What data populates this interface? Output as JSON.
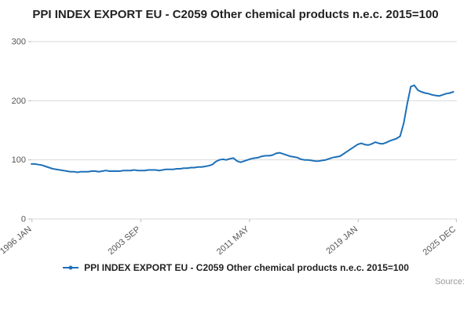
{
  "title": "PPI INDEX EXPORT EU - C2059 Other chemical products n.e.c. 2015=100",
  "legend": {
    "label": "PPI INDEX EXPORT EU - C2059 Other chemical products n.e.c. 2015=100"
  },
  "source_label": "Source:",
  "colors": {
    "line": "#1d70b8",
    "grid": "#d9d9d9",
    "tick": "#bbbbbb",
    "tick_text": "#555555"
  },
  "chart_data": {
    "type": "line",
    "title": "PPI INDEX EXPORT EU - C2059 Other chemical products n.e.c. 2015=100",
    "xlabel": "",
    "ylabel": "",
    "x_start": 1996.0,
    "x_step": 0.25,
    "x_range": [
      1996,
      2026
    ],
    "ylim": [
      0,
      300
    ],
    "yticks": [
      0,
      100,
      200,
      300
    ],
    "xticks": [
      {
        "v": 1996.04,
        "label": "1996 JAN"
      },
      {
        "v": 2003.71,
        "label": "2003 SEP"
      },
      {
        "v": 2011.38,
        "label": "2011 MAY"
      },
      {
        "v": 2019.04,
        "label": "2019 JAN"
      },
      {
        "v": 2025.96,
        "label": "2025 DEC"
      }
    ],
    "grid": "horizontal",
    "legend_position": "bottom",
    "series": [
      {
        "name": "PPI INDEX EXPORT EU - C2059 Other chemical products n.e.c. 2015=100",
        "values": [
          93,
          93,
          92,
          91,
          89,
          87,
          85,
          84,
          83,
          82,
          81,
          80,
          80,
          79,
          80,
          80,
          80,
          81,
          81,
          80,
          81,
          82,
          81,
          81,
          81,
          81,
          82,
          82,
          82,
          83,
          82,
          82,
          82,
          83,
          83,
          83,
          82,
          83,
          84,
          84,
          84,
          85,
          85,
          86,
          86,
          87,
          87,
          88,
          88,
          89,
          90,
          92,
          97,
          100,
          101,
          100,
          102,
          103,
          98,
          96,
          98,
          100,
          102,
          103,
          104,
          106,
          107,
          107,
          108,
          111,
          112,
          110,
          108,
          106,
          105,
          104,
          101,
          100,
          100,
          99,
          98,
          98,
          99,
          100,
          102,
          104,
          105,
          106,
          110,
          114,
          118,
          122,
          126,
          128,
          126,
          125,
          127,
          130,
          128,
          127,
          129,
          132,
          134,
          136,
          140,
          162,
          195,
          224,
          226,
          218,
          215,
          213,
          212,
          210,
          209,
          208,
          210,
          212,
          213,
          215
        ]
      }
    ]
  }
}
